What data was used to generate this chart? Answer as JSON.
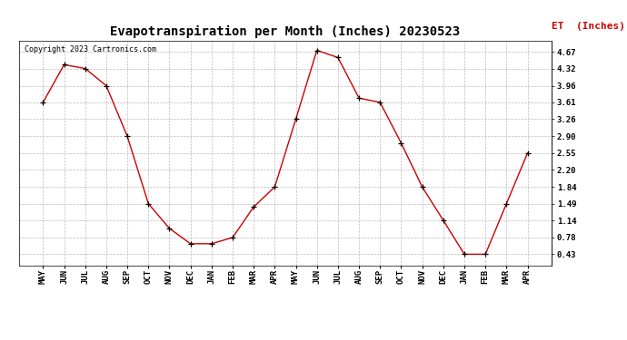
{
  "title": "Evapotranspiration per Month (Inches) 20230523",
  "ylabel": "ET  (Inches)",
  "copyright": "Copyright 2023 Cartronics.com",
  "months": [
    "MAY",
    "JUN",
    "JUL",
    "AUG",
    "SEP",
    "OCT",
    "NOV",
    "DEC",
    "JAN",
    "FEB",
    "MAR",
    "APR",
    "MAY",
    "JUN",
    "JUL",
    "AUG",
    "SEP",
    "OCT",
    "NOV",
    "DEC",
    "JAN",
    "FEB",
    "MAR",
    "APR"
  ],
  "values": [
    3.61,
    4.4,
    4.32,
    3.96,
    2.9,
    1.49,
    0.97,
    0.65,
    0.65,
    0.78,
    1.42,
    1.84,
    3.26,
    4.7,
    4.55,
    3.7,
    3.61,
    2.76,
    1.84,
    1.14,
    0.43,
    0.43,
    1.49,
    2.55
  ],
  "line_color": "#cc0000",
  "marker_color": "#000000",
  "title_fontsize": 10,
  "ylabel_color": "#cc0000",
  "ylabel_fontsize": 8,
  "copyright_color": "#000000",
  "copyright_fontsize": 6,
  "yticks": [
    0.43,
    0.78,
    1.14,
    1.49,
    1.84,
    2.2,
    2.55,
    2.9,
    3.26,
    3.61,
    3.96,
    4.32,
    4.67
  ],
  "ylim": [
    0.2,
    4.9
  ],
  "background_color": "#ffffff",
  "grid_color": "#bbbbbb"
}
